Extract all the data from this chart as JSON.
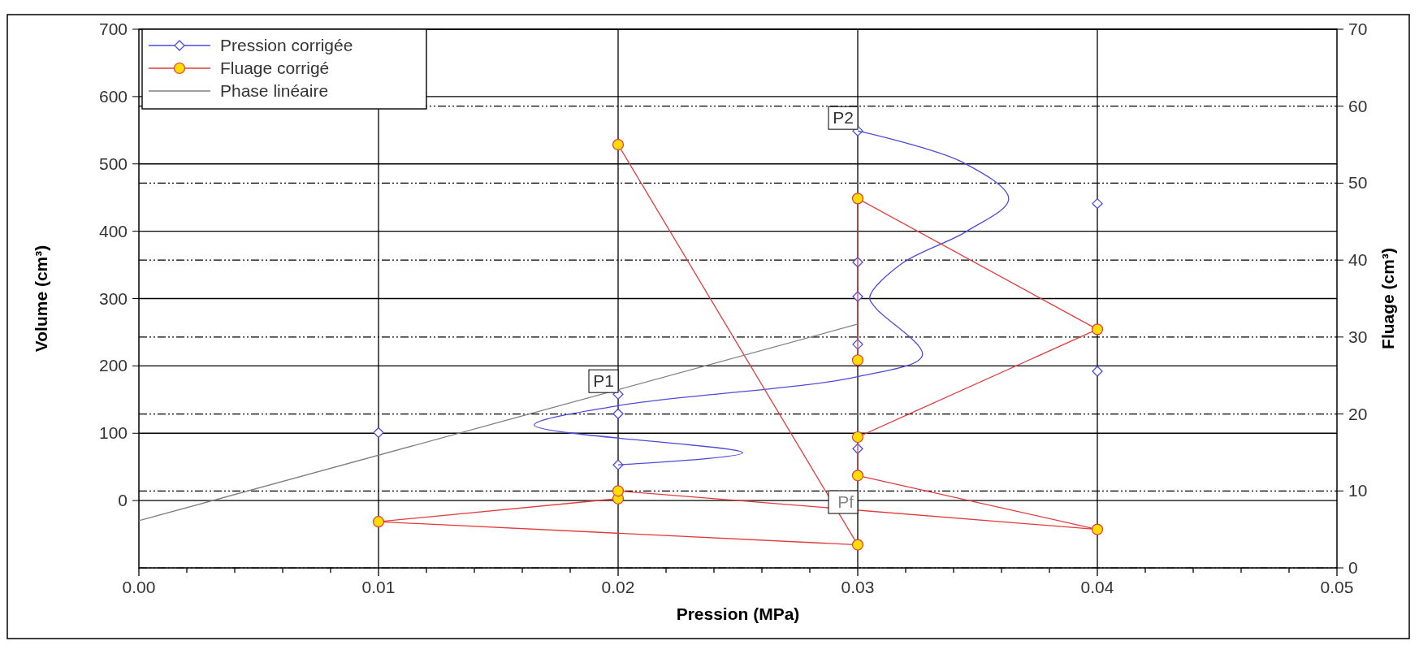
{
  "chart_data": {
    "type": "line",
    "xlabel": "Pression (MPa)",
    "ylabel": "Volume (cm³)",
    "y2label": "Fluage (cm³)",
    "xlim": [
      0,
      0.05
    ],
    "xticks": [
      {
        "value": 0,
        "label": "0.00"
      },
      {
        "value": 0.002,
        "label": null
      },
      {
        "value": 0.004,
        "label": null
      },
      {
        "value": 0.006,
        "label": null
      },
      {
        "value": 0.008,
        "label": null
      },
      {
        "value": 0.01,
        "label": "0.01"
      },
      {
        "value": 0.012,
        "label": null
      },
      {
        "value": 0.014,
        "label": null
      },
      {
        "value": 0.016,
        "label": null
      },
      {
        "value": 0.018,
        "label": null
      },
      {
        "value": 0.02,
        "label": "0.02"
      },
      {
        "value": 0.022,
        "label": null
      },
      {
        "value": 0.024,
        "label": null
      },
      {
        "value": 0.026,
        "label": null
      },
      {
        "value": 0.028,
        "label": null
      },
      {
        "value": 0.03,
        "label": "0.03"
      },
      {
        "value": 0.032,
        "label": null
      },
      {
        "value": 0.034,
        "label": null
      },
      {
        "value": 0.036,
        "label": null
      },
      {
        "value": 0.038,
        "label": null
      },
      {
        "value": 0.04,
        "label": "0.04"
      },
      {
        "value": 0.042,
        "label": null
      },
      {
        "value": 0.044,
        "label": null
      },
      {
        "value": 0.046,
        "label": null
      },
      {
        "value": 0.048,
        "label": null
      },
      {
        "value": 0.05,
        "label": "0.05"
      }
    ],
    "ylim": [
      -100,
      700
    ],
    "yticks": [
      0,
      100,
      200,
      300,
      400,
      500,
      600,
      700
    ],
    "y2lim": [
      0,
      70
    ],
    "y2ticks": [
      0,
      10,
      20,
      30,
      40,
      50,
      60,
      70
    ],
    "grid": true,
    "legend": "top left",
    "series": [
      {
        "name": "Pression corrigée",
        "type": "scatter",
        "marker": "diamond",
        "color": "#4b4bd8",
        "x": [
          0.01,
          0.02,
          0.02,
          0.02,
          0.03,
          0.03,
          0.03,
          0.03,
          0.03,
          0.04,
          0.04
        ],
        "values": [
          101,
          158,
          129,
          53,
          549,
          354,
          303,
          232,
          77,
          441,
          192
        ]
      },
      {
        "marker": "none",
        "color": "#4b4bd8",
        "x": [
          0.02,
          0.0252,
          0.0165,
          0.02,
          0.03,
          0.0327,
          0.03075,
          0.0305,
          0.0318,
          0.03455,
          0.0363,
          0.0344,
          0.03
        ],
        "values": [
          53,
          71,
          112,
          141,
          184,
          216,
          286,
          302,
          351,
          400,
          448,
          502,
          549
        ]
      },
      {
        "name": "Fluage corrigé",
        "axis": "y2",
        "marker": "circle",
        "color": "#e03c3c",
        "colors": [
          "#ffdd00",
          "#ffdd00",
          "#ffdd00",
          "#ffdd00",
          "#ffdd00",
          "#ffdd00",
          "#ffdd00",
          "#ffdd00",
          "#ffdd00",
          "#ffdd00",
          "#ffdd00"
        ],
        "x": [
          0.02,
          0.03,
          0.01,
          0.02,
          0.02,
          0.04,
          0.03,
          0.03,
          0.04,
          0.03,
          0.03
        ],
        "values": [
          55,
          3,
          6,
          9,
          10,
          5,
          12,
          17,
          31,
          48,
          27
        ]
      },
      {
        "name": "Phase linéaire",
        "marker": "none",
        "color": "#808080",
        "x": [
          0,
          0.03
        ],
        "values": [
          -30,
          262
        ]
      }
    ],
    "annotations": [
      {
        "text": "P1",
        "x": 0.02,
        "y": 158
      },
      {
        "text": "P2",
        "x": 0.03,
        "y": 549
      },
      "Pf"
    ]
  }
}
